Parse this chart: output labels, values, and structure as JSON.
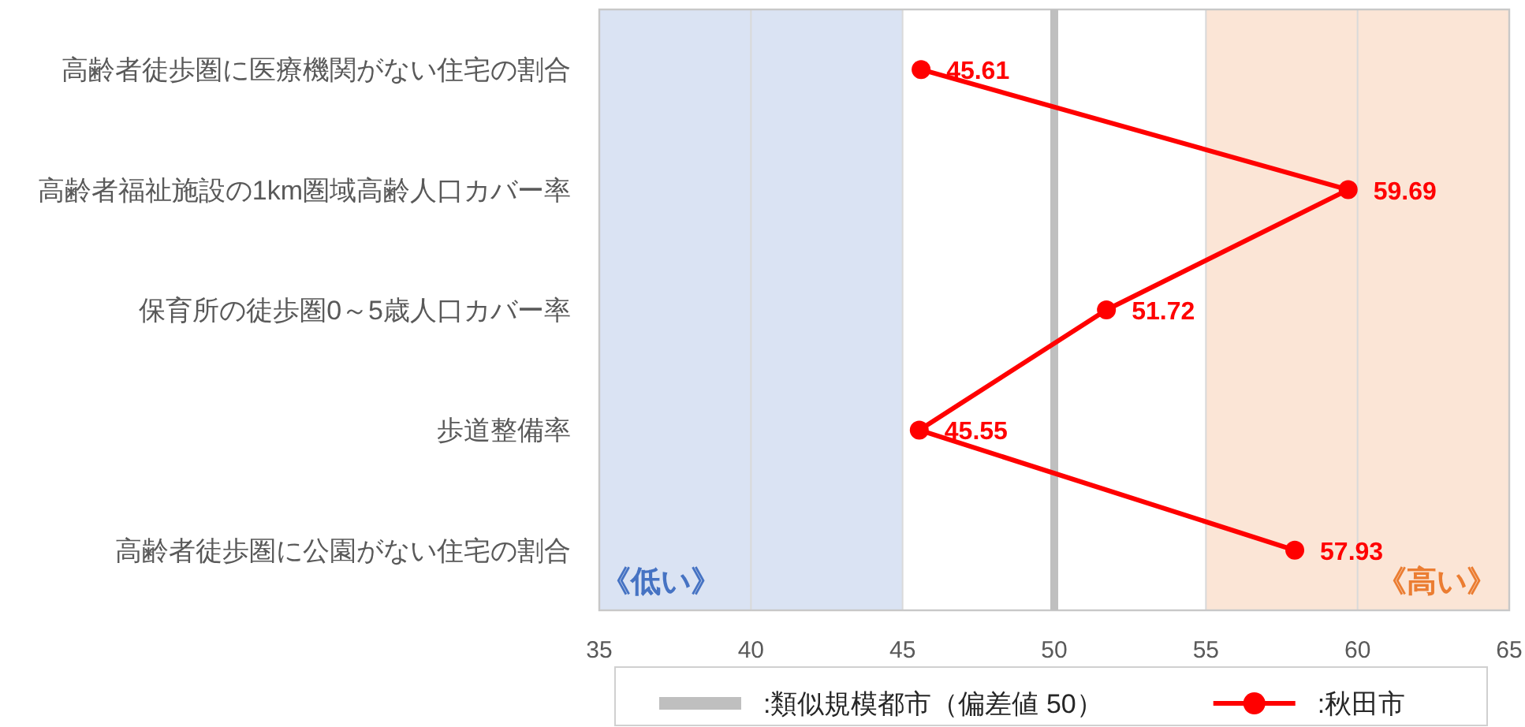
{
  "chart_data": {
    "type": "line",
    "orientation": "horizontal",
    "categories": [
      "高齢者徒歩圏に医療機関がない住宅の割合",
      "高齢者福祉施設の1km圏域高齢人口カバー率",
      "保育所の徒歩圏0～5歳人口カバー率",
      "歩道整備率",
      "高齢者徒歩圏に公園がない住宅の割合"
    ],
    "series": [
      {
        "name": ":秋田市",
        "color": "#ff0000",
        "values": [
          45.61,
          59.69,
          51.72,
          45.55,
          57.93
        ]
      }
    ],
    "xlim": [
      35,
      65
    ],
    "xticks": [
      35,
      40,
      45,
      50,
      55,
      60,
      65
    ],
    "grid": "x",
    "marker": "circle",
    "data_labels": true,
    "legend": "bottom",
    "ref_lines": [
      {
        "axis": "x",
        "value": 50,
        "label": ":類似規模都市（偏差値 50）",
        "color": "#bfbfbf"
      }
    ],
    "bands": [
      {
        "axis": "x",
        "from": 35,
        "to": 45,
        "label": "《低い》",
        "color": "#dae3f3"
      },
      {
        "axis": "x",
        "from": 55,
        "to": 65,
        "label": "《高い》",
        "color": "#fbe5d6"
      }
    ]
  }
}
